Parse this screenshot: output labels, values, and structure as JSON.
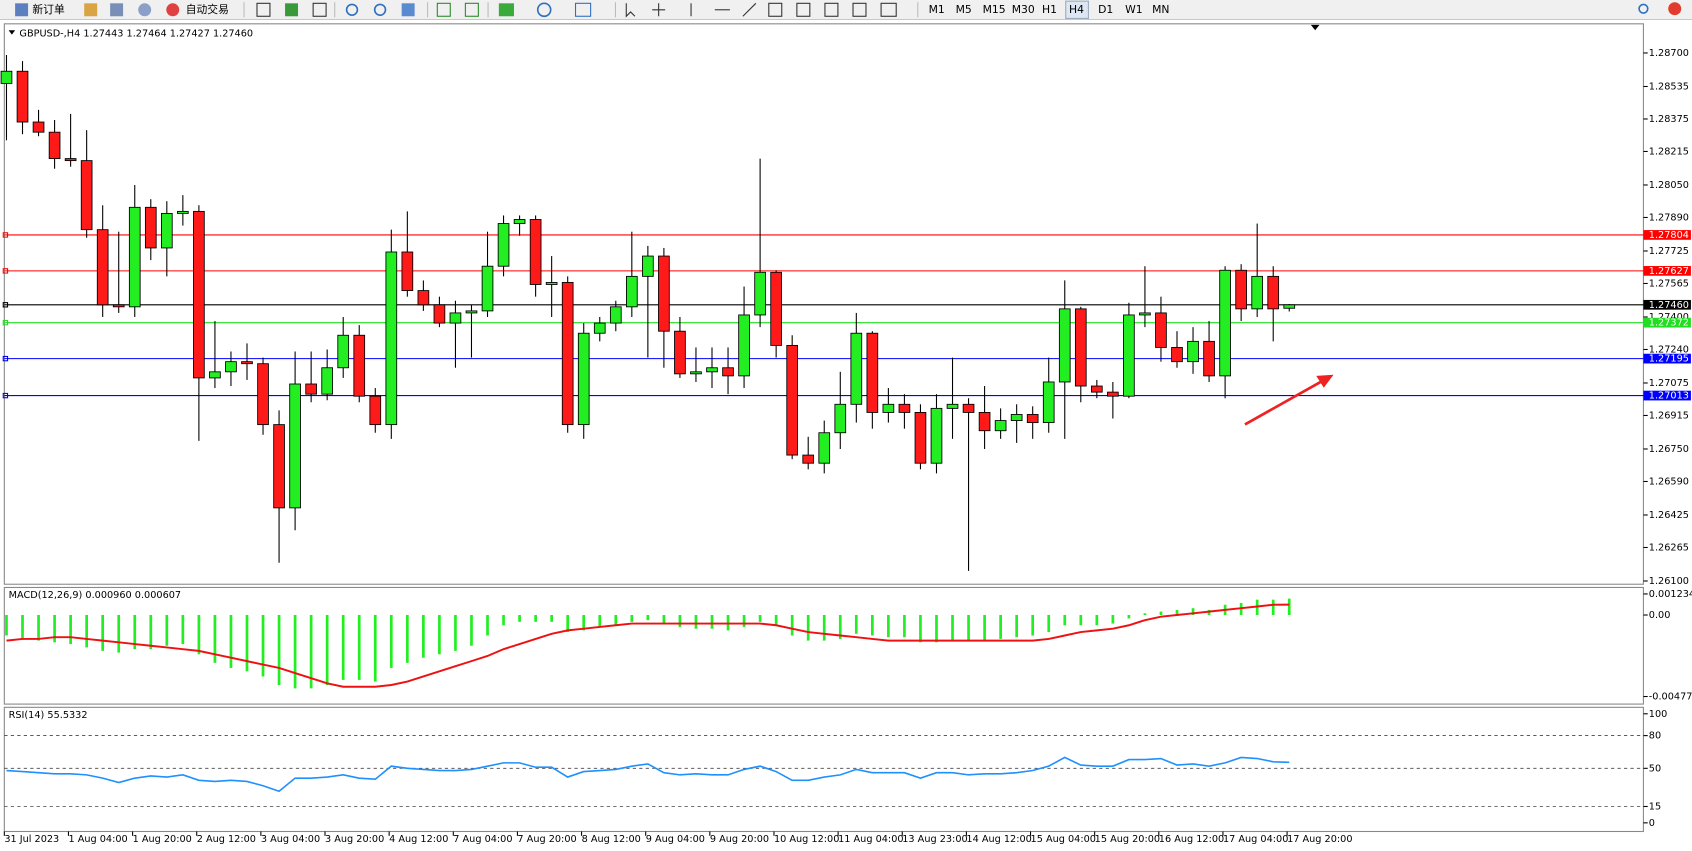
{
  "toolbar": {
    "new_order": "新订单",
    "auto_trade": "自动交易",
    "timeframes": [
      "M1",
      "M5",
      "M15",
      "M30",
      "H1",
      "H4",
      "D1",
      "W1",
      "MN"
    ]
  },
  "chart_data": [
    {
      "type": "candlestick",
      "title": "GBPUSD-,H4  1.27443 1.27464 1.27427 1.27460",
      "up_color": "#22ee22",
      "down_color": "#ff1a1a",
      "categories": [
        "31 Jul 2023",
        null,
        null,
        null,
        "1 Aug 04:00",
        null,
        null,
        null,
        "1 Aug 20:00",
        null,
        null,
        null,
        "2 Aug 12:00",
        null,
        null,
        null,
        "3 Aug 04:00",
        null,
        null,
        null,
        "3 Aug 20:00",
        null,
        null,
        null,
        "4 Aug 12:00",
        null,
        null,
        null,
        "7 Aug 04:00",
        null,
        null,
        null,
        "7 Aug 20:00",
        null,
        null,
        null,
        "8 Aug 12:00",
        null,
        null,
        null,
        "9 Aug 04:00",
        null,
        null,
        null,
        "9 Aug 20:00",
        null,
        null,
        null,
        "10 Aug 12:00",
        null,
        null,
        null,
        "11 Aug 04:00",
        null,
        null,
        null,
        "13 Aug 23:00",
        null,
        null,
        null,
        "14 Aug 12:00",
        null,
        null,
        null,
        "15 Aug 04:00",
        null,
        null,
        null,
        "15 Aug 20:00",
        null,
        null,
        null,
        "16 Aug 12:00",
        null,
        null,
        null,
        "17 Aug 04:00",
        null,
        null,
        null,
        "17 Aug 20:00"
      ],
      "open": [
        1.2855,
        1.2861,
        1.2836,
        1.2831,
        1.2818,
        1.2817,
        1.2783,
        1.2746,
        1.2745,
        1.2794,
        1.2774,
        1.2791,
        1.2792,
        1.271,
        1.2713,
        1.2718,
        1.2717,
        1.2687,
        1.2646,
        1.2707,
        1.2702,
        1.2715,
        1.2731,
        1.2701,
        1.2687,
        1.2772,
        1.2753,
        1.2746,
        1.2737,
        1.2742,
        1.2743,
        1.2765,
        1.2786,
        1.2788,
        1.2756,
        1.2757,
        1.2687,
        1.2732,
        1.2737,
        1.2745,
        1.276,
        1.277,
        1.2733,
        1.2712,
        1.2713,
        1.2715,
        1.2711,
        1.2741,
        1.2762,
        1.2726,
        1.2672,
        1.2668,
        1.2683,
        1.2697,
        1.2732,
        1.2693,
        1.2697,
        1.2693,
        1.2668,
        1.2695,
        1.2697,
        1.2693,
        1.2684,
        1.2689,
        1.2692,
        1.2688,
        1.2708,
        1.2744,
        1.2706,
        1.2703,
        1.2701,
        1.2741,
        1.2742,
        1.2725,
        1.2718,
        1.2728,
        1.2711,
        1.2763,
        1.2744,
        1.276,
        1.27443
      ],
      "high": [
        1.2869,
        1.2866,
        1.2842,
        1.2837,
        1.284,
        1.2832,
        1.2795,
        1.2782,
        1.2805,
        1.2798,
        1.2797,
        1.28,
        1.2795,
        1.2738,
        1.2723,
        1.2727,
        1.272,
        1.2694,
        1.2723,
        1.2723,
        1.2724,
        1.274,
        1.2736,
        1.2705,
        1.2783,
        1.2792,
        1.2758,
        1.275,
        1.2748,
        1.2746,
        1.2782,
        1.279,
        1.279,
        1.279,
        1.277,
        1.276,
        1.2737,
        1.274,
        1.2748,
        1.2782,
        1.2775,
        1.2774,
        1.274,
        1.2725,
        1.2725,
        1.2725,
        1.2755,
        1.2818,
        1.2763,
        1.2731,
        1.2681,
        1.2689,
        1.2713,
        1.2742,
        1.2733,
        1.2705,
        1.2702,
        1.2697,
        1.2702,
        1.272,
        1.27,
        1.2706,
        1.2695,
        1.2697,
        1.2696,
        1.272,
        1.2758,
        1.2745,
        1.2709,
        1.2708,
        1.2747,
        1.2765,
        1.275,
        1.2733,
        1.2735,
        1.2738,
        1.2765,
        1.2766,
        1.2786,
        1.2765,
        1.27464
      ],
      "low": [
        1.2827,
        1.283,
        1.2829,
        1.2813,
        1.2814,
        1.2779,
        1.274,
        1.2742,
        1.274,
        1.2768,
        1.276,
        1.2785,
        1.2679,
        1.2705,
        1.2706,
        1.2709,
        1.2682,
        1.2619,
        1.2635,
        1.2698,
        1.2699,
        1.271,
        1.2698,
        1.2683,
        1.268,
        1.275,
        1.2743,
        1.2735,
        1.2715,
        1.272,
        1.274,
        1.276,
        1.278,
        1.275,
        1.274,
        1.2683,
        1.268,
        1.2728,
        1.2733,
        1.274,
        1.272,
        1.2715,
        1.271,
        1.2708,
        1.2705,
        1.2702,
        1.2705,
        1.2735,
        1.272,
        1.267,
        1.2665,
        1.2663,
        1.2675,
        1.2688,
        1.2685,
        1.2688,
        1.2685,
        1.2665,
        1.2663,
        1.268,
        1.2615,
        1.2675,
        1.268,
        1.2678,
        1.268,
        1.2683,
        1.268,
        1.2698,
        1.27,
        1.269,
        1.27,
        1.2735,
        1.2718,
        1.2715,
        1.2712,
        1.2708,
        1.27,
        1.2738,
        1.274,
        1.2728,
        1.27427
      ],
      "close": [
        1.2861,
        1.2836,
        1.2831,
        1.2818,
        1.2817,
        1.2783,
        1.2746,
        1.2745,
        1.2794,
        1.2774,
        1.2791,
        1.2792,
        1.271,
        1.2713,
        1.2718,
        1.2717,
        1.2687,
        1.2646,
        1.2707,
        1.2702,
        1.2715,
        1.2731,
        1.2701,
        1.2687,
        1.2772,
        1.2753,
        1.2746,
        1.2737,
        1.2742,
        1.2743,
        1.2765,
        1.2786,
        1.2788,
        1.2756,
        1.2757,
        1.2687,
        1.2732,
        1.2737,
        1.2745,
        1.276,
        1.277,
        1.2733,
        1.2712,
        1.2713,
        1.2715,
        1.2711,
        1.2741,
        1.2762,
        1.2726,
        1.2672,
        1.2668,
        1.2683,
        1.2697,
        1.2732,
        1.2693,
        1.2697,
        1.2693,
        1.2668,
        1.2695,
        1.2697,
        1.2693,
        1.2684,
        1.2689,
        1.2692,
        1.2688,
        1.2708,
        1.2744,
        1.2706,
        1.2703,
        1.2701,
        1.2741,
        1.2742,
        1.2725,
        1.2718,
        1.2728,
        1.2711,
        1.2763,
        1.2744,
        1.276,
        1.2744,
        1.2746
      ],
      "ylim": [
        1.261,
        1.287
      ],
      "yticks": [
        {
          "value": 1.287,
          "label": "1.28700"
        },
        {
          "value": 1.28535,
          "label": "1.28535"
        },
        {
          "value": 1.28375,
          "label": "1.28375"
        },
        {
          "value": 1.28215,
          "label": "1.28215"
        },
        {
          "value": 1.2805,
          "label": "1.28050"
        },
        {
          "value": 1.2789,
          "label": "1.27890"
        },
        {
          "value": 1.27725,
          "label": "1.27725"
        },
        {
          "value": 1.27565,
          "label": "1.27565"
        },
        {
          "value": 1.274,
          "label": "1.27400"
        },
        {
          "value": 1.2724,
          "label": "1.27240"
        },
        {
          "value": 1.27075,
          "label": "1.27075"
        },
        {
          "value": 1.26915,
          "label": "1.26915"
        },
        {
          "value": 1.2675,
          "label": "1.26750"
        },
        {
          "value": 1.2659,
          "label": "1.26590"
        },
        {
          "value": 1.26425,
          "label": "1.26425"
        },
        {
          "value": 1.26265,
          "label": "1.26265"
        },
        {
          "value": 1.261,
          "label": "1.26100"
        }
      ],
      "levels": [
        {
          "value": 1.27804,
          "label": "1.27804",
          "color": "#ff0000"
        },
        {
          "value": 1.27627,
          "label": "1.27627",
          "color": "#ff0000"
        },
        {
          "value": 1.2746,
          "label": "1.27460",
          "color": "#000000"
        },
        {
          "value": 1.27372,
          "label": "1.27372",
          "color": "#22dd22"
        },
        {
          "value": 1.27195,
          "label": "1.27195",
          "color": "#0000ff"
        },
        {
          "value": 1.27013,
          "label": "1.27013",
          "color": "#0000ff"
        }
      ]
    },
    {
      "type": "macd",
      "title": "MACD(12,26,9) 0.000960 0.000607",
      "histogram": {
        "color": "#22ee22",
        "values": [
          -0.0012,
          -0.0014,
          -0.0015,
          -0.0016,
          -0.0017,
          -0.0019,
          -0.0021,
          -0.0022,
          -0.002,
          -0.002,
          -0.0018,
          -0.0017,
          -0.0023,
          -0.0028,
          -0.0031,
          -0.0033,
          -0.0036,
          -0.0041,
          -0.0043,
          -0.0043,
          -0.0041,
          -0.0038,
          -0.0038,
          -0.0039,
          -0.0031,
          -0.0028,
          -0.0025,
          -0.0023,
          -0.0021,
          -0.0018,
          -0.0012,
          -0.0006,
          -0.0004,
          -0.0004,
          -0.0004,
          -0.001,
          -0.0009,
          -0.0007,
          -0.0006,
          -0.0004,
          -0.0003,
          -0.0005,
          -0.0007,
          -0.0008,
          -0.0008,
          -0.0009,
          -0.0007,
          -0.0004,
          -0.0006,
          -0.0012,
          -0.0015,
          -0.0015,
          -0.0014,
          -0.0011,
          -0.0012,
          -0.0013,
          -0.0013,
          -0.0016,
          -0.0016,
          -0.0015,
          -0.0015,
          -0.0015,
          -0.0014,
          -0.0013,
          -0.0012,
          -0.001,
          -0.0006,
          -0.0006,
          -0.0006,
          -0.0005,
          -0.0002,
          0.0001,
          0.0002,
          0.0003,
          0.0004,
          0.0003,
          0.0006,
          0.0007,
          0.0009,
          0.0009,
          0.00096
        ]
      },
      "signal": {
        "color": "#ee1111",
        "values": [
          -0.0015,
          -0.0014,
          -0.0014,
          -0.0013,
          -0.0013,
          -0.0014,
          -0.0015,
          -0.0016,
          -0.0017,
          -0.0018,
          -0.0019,
          -0.002,
          -0.0021,
          -0.0023,
          -0.0025,
          -0.0027,
          -0.0029,
          -0.0031,
          -0.0034,
          -0.0037,
          -0.004,
          -0.0042,
          -0.0042,
          -0.0042,
          -0.0041,
          -0.0039,
          -0.0036,
          -0.0033,
          -0.003,
          -0.0027,
          -0.0024,
          -0.002,
          -0.0017,
          -0.0014,
          -0.0011,
          -0.0009,
          -0.0008,
          -0.0007,
          -0.0006,
          -0.0005,
          -0.0005,
          -0.0005,
          -0.0005,
          -0.0005,
          -0.0005,
          -0.0005,
          -0.0005,
          -0.0005,
          -0.0006,
          -0.0008,
          -0.001,
          -0.0011,
          -0.0012,
          -0.0013,
          -0.0014,
          -0.0015,
          -0.0015,
          -0.0015,
          -0.0015,
          -0.0015,
          -0.0015,
          -0.0015,
          -0.0015,
          -0.0015,
          -0.0015,
          -0.0014,
          -0.0012,
          -0.001,
          -0.0009,
          -0.0008,
          -0.0006,
          -0.0003,
          -0.0001,
          0,
          0.0001,
          0.0002,
          0.0003,
          0.0004,
          0.0005,
          0.0006,
          0.000607
        ]
      },
      "ylim": [
        -0.004774,
        0.001234
      ],
      "yticks": [
        {
          "value": 0.001234,
          "label": "0.001234"
        },
        {
          "value": 0,
          "label": "0.00"
        },
        {
          "value": -0.004774,
          "label": "-0.004774"
        }
      ]
    },
    {
      "type": "rsi",
      "title": "RSI(14) 55.5332",
      "color": "#1e90ff",
      "values": [
        48,
        47,
        46,
        45,
        45,
        44,
        41,
        37,
        41,
        43,
        42,
        44,
        39,
        38,
        39,
        38,
        34,
        29,
        41,
        41,
        42,
        44,
        41,
        40,
        52,
        50,
        49,
        48,
        48,
        49,
        52,
        55,
        55,
        51,
        51,
        42,
        47,
        48,
        49,
        52,
        54,
        46,
        44,
        45,
        44,
        44,
        49,
        52,
        47,
        39,
        39,
        42,
        44,
        49,
        46,
        46,
        46,
        41,
        46,
        46,
        44,
        45,
        45,
        46,
        48,
        52,
        60,
        53,
        52,
        52,
        58,
        58,
        59,
        53,
        54,
        52,
        55,
        60,
        59,
        56,
        55.5332
      ],
      "ylim": [
        0,
        100
      ],
      "yticks": [
        100,
        80,
        50,
        15,
        0
      ]
    }
  ]
}
